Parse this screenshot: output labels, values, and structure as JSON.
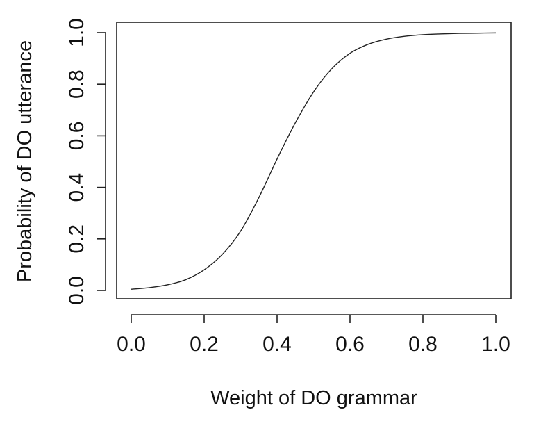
{
  "chart_data": {
    "type": "line",
    "title": "",
    "xlabel": "Weight of DO grammar",
    "ylabel": "Probability of DO utterance",
    "xlim": [
      0.0,
      1.0
    ],
    "ylim": [
      0.0,
      1.0
    ],
    "x_ticks": [
      "0.0",
      "0.2",
      "0.4",
      "0.6",
      "0.8",
      "1.0"
    ],
    "y_ticks": [
      "0.0",
      "0.2",
      "0.4",
      "0.6",
      "0.8",
      "1.0"
    ],
    "grid": false,
    "legend": "none",
    "series": [
      {
        "x": [
          0.0,
          0.05,
          0.1,
          0.15,
          0.2,
          0.25,
          0.3,
          0.35,
          0.4,
          0.45,
          0.5,
          0.55,
          0.6,
          0.65,
          0.7,
          0.75,
          0.8,
          0.85,
          0.9,
          0.95,
          1.0
        ],
        "y": [
          0.005,
          0.011,
          0.022,
          0.042,
          0.08,
          0.14,
          0.23,
          0.36,
          0.51,
          0.65,
          0.77,
          0.86,
          0.92,
          0.955,
          0.975,
          0.986,
          0.992,
          0.995,
          0.997,
          0.998,
          0.999
        ]
      }
    ]
  }
}
